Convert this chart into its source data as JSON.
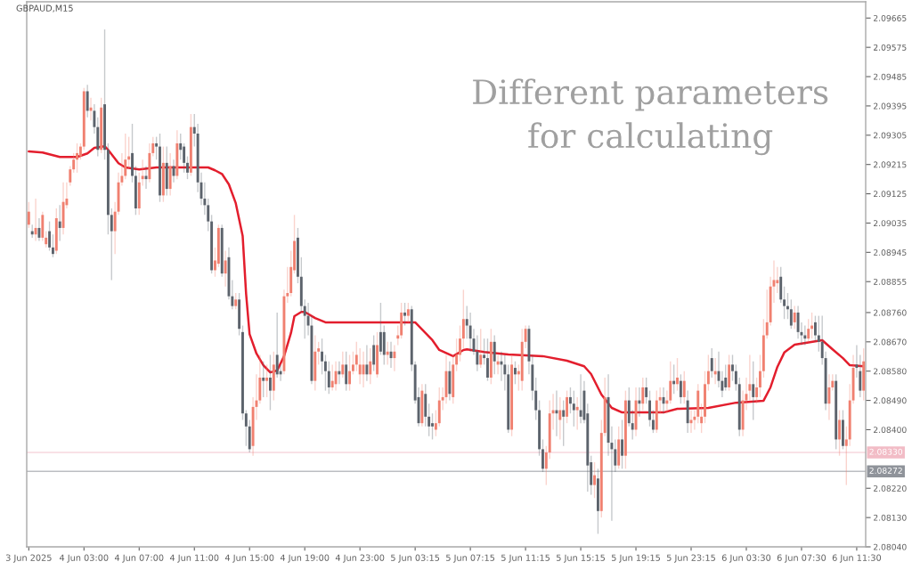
{
  "chart_data": {
    "type": "candlestick",
    "title": "GBPAUD,M15",
    "annotations": [
      "Different parameters\nfor calculating"
    ],
    "categories": [
      "3 Jun 2025",
      null,
      null,
      null,
      null,
      null,
      null,
      null,
      null,
      null,
      null,
      null,
      null,
      null,
      null,
      null,
      "4 Jun 03:00",
      null,
      null,
      null,
      null,
      null,
      null,
      null,
      null,
      null,
      null,
      null,
      null,
      null,
      null,
      null,
      "4 Jun 07:00",
      null,
      null,
      null,
      null,
      null,
      null,
      null,
      null,
      null,
      null,
      null,
      null,
      null,
      null,
      null,
      "4 Jun 11:00",
      null,
      null,
      null,
      null,
      null,
      null,
      null,
      null,
      null,
      null,
      null,
      null,
      null,
      null,
      null,
      "4 Jun 15:00",
      null,
      null,
      null,
      null,
      null,
      null,
      null,
      null,
      null,
      null,
      null,
      null,
      null,
      null,
      null,
      "4 Jun 19:00",
      null,
      null,
      null,
      null,
      null,
      null,
      null,
      null,
      null,
      null,
      null,
      null,
      null,
      null,
      null,
      "4 Jun 23:00",
      null,
      null,
      null,
      null,
      null,
      null,
      null,
      null,
      null,
      null,
      null,
      null,
      null,
      null,
      null,
      "5 Jun 03:15",
      null,
      null,
      null,
      null,
      null,
      null,
      null,
      null,
      null,
      null,
      null,
      null,
      null,
      null,
      null,
      "5 Jun 07:15",
      null,
      null,
      null,
      null,
      null,
      null,
      null,
      null,
      null,
      null,
      null,
      null,
      null,
      null,
      null,
      "5 Jun 11:15",
      null,
      null,
      null,
      null,
      null,
      null,
      null,
      null,
      null,
      null,
      null,
      null,
      null,
      null,
      null,
      "5 Jun 15:15",
      null,
      null,
      null,
      null,
      null,
      null,
      null,
      null,
      null,
      null,
      null,
      null,
      null,
      null,
      null,
      "5 Jun 19:15",
      null,
      null,
      null,
      null,
      null,
      null,
      null,
      null,
      null,
      null,
      null,
      null,
      null,
      null,
      null,
      "5 Jun 23:15",
      null,
      null,
      null,
      null,
      null,
      null,
      null,
      null,
      null,
      null,
      null,
      null,
      null,
      null,
      null,
      "6 Jun 03:30",
      null,
      null,
      null,
      null,
      null,
      null,
      null,
      null,
      null,
      null,
      null,
      null,
      null,
      null,
      null,
      "6 Jun 07:30",
      null,
      null,
      null,
      null,
      null,
      null,
      null,
      null,
      null,
      null,
      null,
      null,
      null,
      null,
      null,
      "6 Jun 11:30",
      null,
      null
    ],
    "ohlc": [
      [
        2.0903,
        2.091,
        2.0902,
        2.0907
      ],
      [
        2.0901,
        2.0903,
        2.0899,
        2.09
      ],
      [
        2.09,
        2.0911,
        2.0898,
        2.0902
      ],
      [
        2.0902,
        2.0905,
        2.0898,
        2.0899
      ],
      [
        2.0899,
        2.0907,
        2.0898,
        2.0906
      ],
      [
        2.0897,
        2.0901,
        2.0896,
        2.0899
      ],
      [
        2.0901,
        2.0904,
        2.0895,
        2.0896
      ],
      [
        2.0896,
        2.09,
        2.0893,
        2.0894
      ],
      [
        2.0895,
        2.0908,
        2.0894,
        2.0905
      ],
      [
        2.0904,
        2.0909,
        2.0898,
        2.0902
      ],
      [
        2.0902,
        2.0916,
        2.09,
        2.091
      ],
      [
        2.0909,
        2.0916,
        2.0908,
        2.0911
      ],
      [
        2.0916,
        2.0921,
        2.0915,
        2.092
      ],
      [
        2.092,
        2.0925,
        2.0919,
        2.0923
      ],
      [
        2.0923,
        2.0928,
        2.0919,
        2.0925
      ],
      [
        2.0924,
        2.0928,
        2.0923,
        2.0927
      ],
      [
        2.0927,
        2.0945,
        2.0926,
        2.0944
      ],
      [
        2.0944,
        2.0946,
        2.0936,
        2.0938
      ],
      [
        2.0938,
        2.0942,
        2.0935,
        2.0939
      ],
      [
        2.0938,
        2.094,
        2.0931,
        2.0933
      ],
      [
        2.0933,
        2.0936,
        2.0924,
        2.0926
      ],
      [
        2.0926,
        2.0942,
        2.0925,
        2.0939
      ],
      [
        2.094,
        2.0963,
        2.0923,
        2.0926
      ],
      [
        2.0926,
        2.0928,
        2.09,
        2.0906
      ],
      [
        2.0906,
        2.0908,
        2.0886,
        2.0901
      ],
      [
        2.0901,
        2.091,
        2.0894,
        2.0907
      ],
      [
        2.0907,
        2.0919,
        2.0906,
        2.0916
      ],
      [
        2.0916,
        2.0925,
        2.0915,
        2.0918
      ],
      [
        2.0918,
        2.0931,
        2.0917,
        2.0923
      ],
      [
        2.0923,
        2.093,
        2.092,
        2.0924
      ],
      [
        2.0925,
        2.0934,
        2.0916,
        2.0918
      ],
      [
        2.0918,
        2.0921,
        2.0906,
        2.0908
      ],
      [
        2.0908,
        2.0919,
        2.0906,
        2.0916
      ],
      [
        2.0917,
        2.0923,
        2.0915,
        2.0918
      ],
      [
        2.0918,
        2.0921,
        2.0914,
        2.0917
      ],
      [
        2.0917,
        2.0928,
        2.0916,
        2.0925
      ],
      [
        2.0925,
        2.093,
        2.0924,
        2.0928
      ],
      [
        2.0928,
        2.093,
        2.0923,
        2.0927
      ],
      [
        2.0927,
        2.0931,
        2.091,
        2.0912
      ],
      [
        2.0912,
        2.0927,
        2.091,
        2.0922
      ],
      [
        2.0922,
        2.0927,
        2.0912,
        2.0914
      ],
      [
        2.0914,
        2.0925,
        2.0912,
        2.0921
      ],
      [
        2.0921,
        2.0923,
        2.0916,
        2.0918
      ],
      [
        2.0918,
        2.0932,
        2.0917,
        2.0928
      ],
      [
        2.0928,
        2.0931,
        2.0923,
        2.0926
      ],
      [
        2.0927,
        2.0928,
        2.0919,
        2.0922
      ],
      [
        2.0922,
        2.0924,
        2.0917,
        2.0919
      ],
      [
        2.0919,
        2.0937,
        2.0918,
        2.0933
      ],
      [
        2.0933,
        2.0937,
        2.0927,
        2.0931
      ],
      [
        2.0931,
        2.0934,
        2.0913,
        2.0916
      ],
      [
        2.0916,
        2.0919,
        2.0909,
        2.0911
      ],
      [
        2.0911,
        2.0916,
        2.0906,
        2.0909
      ],
      [
        2.0909,
        2.0911,
        2.0901,
        2.0904
      ],
      [
        2.0904,
        2.0906,
        2.0888,
        2.0889
      ],
      [
        2.0889,
        2.0896,
        2.0887,
        2.0892
      ],
      [
        2.0891,
        2.0903,
        2.089,
        2.0902
      ],
      [
        2.0902,
        2.0903,
        2.0887,
        2.0888
      ],
      [
        2.0888,
        2.0895,
        2.0884,
        2.0892
      ],
      [
        2.0893,
        2.0896,
        2.088,
        2.0881
      ],
      [
        2.0881,
        2.0886,
        2.0877,
        2.0878
      ],
      [
        2.0878,
        2.0882,
        2.0877,
        2.088
      ],
      [
        2.088,
        2.0882,
        2.0869,
        2.0871
      ],
      [
        2.087,
        2.0872,
        2.0843,
        2.0845
      ],
      [
        2.0845,
        2.0846,
        2.0835,
        2.0841
      ],
      [
        2.0841,
        2.0843,
        2.0833,
        2.0834
      ],
      [
        2.0835,
        2.085,
        2.0832,
        2.0847
      ],
      [
        2.0847,
        2.0857,
        2.0843,
        2.0849
      ],
      [
        2.0849,
        2.0863,
        2.0848,
        2.0856
      ],
      [
        2.0856,
        2.0861,
        2.085,
        2.0855
      ],
      [
        2.0855,
        2.086,
        2.085,
        2.0856
      ],
      [
        2.0856,
        2.0863,
        2.0846,
        2.0852
      ],
      [
        2.0852,
        2.0864,
        2.0849,
        2.086
      ],
      [
        2.0863,
        2.0876,
        2.0856,
        2.0857
      ],
      [
        2.0858,
        2.086,
        2.0855,
        2.0857
      ],
      [
        2.0858,
        2.0883,
        2.0857,
        2.0881
      ],
      [
        2.0881,
        2.089,
        2.0879,
        2.0882
      ],
      [
        2.0882,
        2.0895,
        2.0881,
        2.089
      ],
      [
        2.0889,
        2.0906,
        2.0888,
        2.0898
      ],
      [
        2.0899,
        2.0902,
        2.0885,
        2.0887
      ],
      [
        2.0887,
        2.0893,
        2.0876,
        2.0878
      ],
      [
        2.0878,
        2.088,
        2.0868,
        2.0875
      ],
      [
        2.0875,
        2.0879,
        2.0869,
        2.0872
      ],
      [
        2.0872,
        2.0875,
        2.0854,
        2.0855
      ],
      [
        2.0855,
        2.0869,
        2.0852,
        2.0864
      ],
      [
        2.0864,
        2.0867,
        2.086,
        2.0865
      ],
      [
        2.0864,
        2.0868,
        2.0857,
        2.0861
      ],
      [
        2.0861,
        2.0863,
        2.0852,
        2.0858
      ],
      [
        2.0858,
        2.0861,
        2.0851,
        2.0853
      ],
      [
        2.0853,
        2.086,
        2.0852,
        2.0855
      ],
      [
        2.0854,
        2.0861,
        2.0852,
        2.0858
      ],
      [
        2.0858,
        2.0861,
        2.0854,
        2.0857
      ],
      [
        2.0857,
        2.0864,
        2.0856,
        2.086
      ],
      [
        2.086,
        2.0864,
        2.0852,
        2.0854
      ],
      [
        2.0854,
        2.0863,
        2.0852,
        2.0858
      ],
      [
        2.0858,
        2.0864,
        2.0857,
        2.086
      ],
      [
        2.086,
        2.0867,
        2.0858,
        2.0863
      ],
      [
        2.0857,
        2.0865,
        2.0854,
        2.086
      ],
      [
        2.0857,
        2.0864,
        2.0853,
        2.086
      ],
      [
        2.086,
        2.0866,
        2.0855,
        2.0857
      ],
      [
        2.0857,
        2.0865,
        2.0854,
        2.0861
      ],
      [
        2.0866,
        2.0869,
        2.0858,
        2.086
      ],
      [
        2.0857,
        2.087,
        2.0856,
        2.0866
      ],
      [
        2.087,
        2.0879,
        2.0863,
        2.0864
      ],
      [
        2.087,
        2.0872,
        2.086,
        2.0863
      ],
      [
        2.0863,
        2.0867,
        2.086,
        2.0864
      ],
      [
        2.0864,
        2.0867,
        2.0859,
        2.0862
      ],
      [
        2.0862,
        2.0866,
        2.0858,
        2.0864
      ],
      [
        2.0868,
        2.0872,
        2.0866,
        2.0869
      ],
      [
        2.0869,
        2.0879,
        2.0868,
        2.0876
      ],
      [
        2.0876,
        2.0879,
        2.0872,
        2.0875
      ],
      [
        2.0875,
        2.0879,
        2.0873,
        2.0877
      ],
      [
        2.0877,
        2.0878,
        2.0858,
        2.086
      ],
      [
        2.086,
        2.0861,
        2.0848,
        2.0849
      ],
      [
        2.085,
        2.0853,
        2.0841,
        2.0842
      ],
      [
        2.0842,
        2.0854,
        2.0841,
        2.0852
      ],
      [
        2.0851,
        2.0854,
        2.0841,
        2.0844
      ],
      [
        2.0844,
        2.0848,
        2.0838,
        2.0841
      ],
      [
        2.0842,
        2.0845,
        2.0837,
        2.0841
      ],
      [
        2.084,
        2.0846,
        2.0838,
        2.0842
      ],
      [
        2.0842,
        2.0853,
        2.0841,
        2.0849
      ],
      [
        2.0849,
        2.0853,
        2.0846,
        2.085
      ],
      [
        2.085,
        2.0863,
        2.0848,
        2.0858
      ],
      [
        2.0858,
        2.0861,
        2.0849,
        2.0851
      ],
      [
        2.085,
        2.0863,
        2.0848,
        2.086
      ],
      [
        2.086,
        2.0868,
        2.0858,
        2.0863
      ],
      [
        2.0863,
        2.0872,
        2.0861,
        2.0868
      ],
      [
        2.0868,
        2.0883,
        2.0865,
        2.0874
      ],
      [
        2.0874,
        2.0878,
        2.0868,
        2.0872
      ],
      [
        2.0872,
        2.0876,
        2.0864,
        2.0868
      ],
      [
        2.0868,
        2.0871,
        2.0863,
        2.0864
      ],
      [
        2.0864,
        2.0869,
        2.0858,
        2.086
      ],
      [
        2.086,
        2.0871,
        2.0859,
        2.0863
      ],
      [
        2.0863,
        2.0868,
        2.086,
        2.0862
      ],
      [
        2.0862,
        2.0868,
        2.0855,
        2.0856
      ],
      [
        2.0856,
        2.0871,
        2.0854,
        2.0867
      ],
      [
        2.0867,
        2.0869,
        2.0857,
        2.0861
      ],
      [
        2.086,
        2.0863,
        2.0857,
        2.0861
      ],
      [
        2.0861,
        2.0864,
        2.0855,
        2.086
      ],
      [
        2.086,
        2.0863,
        2.0852,
        2.0857
      ],
      [
        2.0857,
        2.086,
        2.0839,
        2.084
      ],
      [
        2.084,
        2.0863,
        2.0838,
        2.086
      ],
      [
        2.0859,
        2.0861,
        2.0854,
        2.0857
      ],
      [
        2.0857,
        2.086,
        2.0852,
        2.0858
      ],
      [
        2.0855,
        2.0871,
        2.0852,
        2.0867
      ],
      [
        2.0867,
        2.0872,
        2.0865,
        2.0871
      ],
      [
        2.0871,
        2.0872,
        2.0857,
        2.0861
      ],
      [
        2.086,
        2.0863,
        2.0849,
        2.0852
      ],
      [
        2.0852,
        2.0856,
        2.0843,
        2.0846
      ],
      [
        2.0846,
        2.0849,
        2.0832,
        2.0834
      ],
      [
        2.0834,
        2.0837,
        2.0827,
        2.0828
      ],
      [
        2.0828,
        2.0835,
        2.0823,
        2.0833
      ],
      [
        2.0833,
        2.0849,
        2.0831,
        2.0845
      ],
      [
        2.0845,
        2.0851,
        2.084,
        2.0846
      ],
      [
        2.0846,
        2.0852,
        2.0838,
        2.0845
      ],
      [
        2.0843,
        2.085,
        2.0837,
        2.0846
      ],
      [
        2.0846,
        2.0849,
        2.0835,
        2.0844
      ],
      [
        2.0844,
        2.0852,
        2.0842,
        2.085
      ],
      [
        2.085,
        2.0853,
        2.0845,
        2.0848
      ],
      [
        2.0848,
        2.0852,
        2.0841,
        2.0846
      ],
      [
        2.0846,
        2.085,
        2.084,
        2.0847
      ],
      [
        2.0846,
        2.0857,
        2.0842,
        2.0844
      ],
      [
        2.0852,
        2.0855,
        2.0842,
        2.0843
      ],
      [
        2.0845,
        2.0848,
        2.0821,
        2.0829
      ],
      [
        2.083,
        2.0832,
        2.082,
        2.0823
      ],
      [
        2.0823,
        2.083,
        2.0819,
        2.0826
      ],
      [
        2.0825,
        2.0828,
        2.0808,
        2.0815
      ],
      [
        2.0815,
        2.0843,
        2.0813,
        2.0839
      ],
      [
        2.0839,
        2.0856,
        2.0838,
        2.085
      ],
      [
        2.085,
        2.0857,
        2.0832,
        2.0836
      ],
      [
        2.0836,
        2.0841,
        2.0812,
        2.0834
      ],
      [
        2.0834,
        2.0837,
        2.0827,
        2.0829
      ],
      [
        2.0829,
        2.0841,
        2.0828,
        2.0837
      ],
      [
        2.0837,
        2.0843,
        2.0828,
        2.0832
      ],
      [
        2.0832,
        2.0852,
        2.0828,
        2.0849
      ],
      [
        2.0849,
        2.0853,
        2.0841,
        2.0842
      ],
      [
        2.0842,
        2.0846,
        2.0837,
        2.084
      ],
      [
        2.084,
        2.0853,
        2.0838,
        2.0849
      ],
      [
        2.0849,
        2.0853,
        2.0844,
        2.0848
      ],
      [
        2.0848,
        2.0856,
        2.0846,
        2.0853
      ],
      [
        2.0853,
        2.0856,
        2.0848,
        2.085
      ],
      [
        2.0849,
        2.0852,
        2.0841,
        2.0843
      ],
      [
        2.0843,
        2.0846,
        2.0839,
        2.084
      ],
      [
        2.084,
        2.0852,
        2.0839,
        2.0849
      ],
      [
        2.0849,
        2.0853,
        2.0845,
        2.085
      ],
      [
        2.085,
        2.0853,
        2.0845,
        2.0848
      ],
      [
        2.0848,
        2.0852,
        2.0845,
        2.0849
      ],
      [
        2.0849,
        2.0861,
        2.0848,
        2.0855
      ],
      [
        2.0855,
        2.086,
        2.0851,
        2.0854
      ],
      [
        2.0854,
        2.0862,
        2.0852,
        2.0856
      ],
      [
        2.0855,
        2.0857,
        2.0848,
        2.085
      ],
      [
        2.085,
        2.0858,
        2.0848,
        2.0855
      ],
      [
        2.0849,
        2.0852,
        2.0839,
        2.0842
      ],
      [
        2.0842,
        2.0846,
        2.0839,
        2.0843
      ],
      [
        2.0843,
        2.0846,
        2.084,
        2.0844
      ],
      [
        2.0844,
        2.0854,
        2.0842,
        2.0852
      ],
      [
        2.0842,
        2.0848,
        2.0839,
        2.0844
      ],
      [
        2.0844,
        2.0858,
        2.0842,
        2.0854
      ],
      [
        2.0854,
        2.0863,
        2.0852,
        2.0858
      ],
      [
        2.0862,
        2.0865,
        2.0856,
        2.0858
      ],
      [
        2.0857,
        2.0862,
        2.0854,
        2.0858
      ],
      [
        2.0858,
        2.0864,
        2.0853,
        2.0855
      ],
      [
        2.0855,
        2.0858,
        2.085,
        2.0852
      ],
      [
        2.0856,
        2.086,
        2.0852,
        2.0853
      ],
      [
        2.0853,
        2.0863,
        2.0852,
        2.086
      ],
      [
        2.086,
        2.0863,
        2.0855,
        2.0858
      ],
      [
        2.0858,
        2.086,
        2.0852,
        2.0854
      ],
      [
        2.0854,
        2.0856,
        2.0838,
        2.084
      ],
      [
        2.084,
        2.0852,
        2.0838,
        2.0849
      ],
      [
        2.0849,
        2.0856,
        2.0846,
        2.0851
      ],
      [
        2.0852,
        2.0863,
        2.0849,
        2.0854
      ],
      [
        2.0854,
        2.0861,
        2.0843,
        2.085
      ],
      [
        2.085,
        2.0856,
        2.0848,
        2.0853
      ],
      [
        2.0853,
        2.0863,
        2.085,
        2.0858
      ],
      [
        2.0858,
        2.0874,
        2.0856,
        2.0869
      ],
      [
        2.0869,
        2.0883,
        2.0868,
        2.0873
      ],
      [
        2.0873,
        2.0887,
        2.0872,
        2.0884
      ],
      [
        2.0884,
        2.0892,
        2.0879,
        2.0886
      ],
      [
        2.0885,
        2.089,
        2.0882,
        2.0886
      ],
      [
        2.0887,
        2.089,
        2.0879,
        2.088
      ],
      [
        2.088,
        2.0884,
        2.0874,
        2.0878
      ],
      [
        2.0878,
        2.0882,
        2.0874,
        2.0877
      ],
      [
        2.0877,
        2.088,
        2.0871,
        2.0872
      ],
      [
        2.0873,
        2.0878,
        2.0871,
        2.0876
      ],
      [
        2.0876,
        2.0878,
        2.0868,
        2.087
      ],
      [
        2.087,
        2.0873,
        2.0866,
        2.0869
      ],
      [
        2.0869,
        2.0872,
        2.0866,
        2.0868
      ],
      [
        2.0868,
        2.0874,
        2.0867,
        2.0871
      ],
      [
        2.0871,
        2.0876,
        2.0868,
        2.0872
      ],
      [
        2.0873,
        2.0875,
        2.0867,
        2.0869
      ],
      [
        2.0869,
        2.0875,
        2.0864,
        2.0867
      ],
      [
        2.0867,
        2.0875,
        2.086,
        2.0862
      ],
      [
        2.0862,
        2.0864,
        2.0846,
        2.0848
      ],
      [
        2.0848,
        2.0857,
        2.0843,
        2.0853
      ],
      [
        2.0853,
        2.0857,
        2.0852,
        2.0855
      ],
      [
        2.0855,
        2.0857,
        2.0834,
        2.0837
      ],
      [
        2.0837,
        2.0846,
        2.0832,
        2.0843
      ],
      [
        2.0843,
        2.0846,
        2.0834,
        2.0835
      ],
      [
        2.0835,
        2.0841,
        2.0823,
        2.0837
      ],
      [
        2.0837,
        2.0854,
        2.0835,
        2.0849
      ],
      [
        2.0849,
        2.0863,
        2.0848,
        2.0859
      ],
      [
        2.086,
        2.0866,
        2.0856,
        2.0859
      ],
      [
        2.0858,
        2.0863,
        2.085,
        2.0852
      ],
      [
        2.0852,
        2.0865,
        2.0849,
        2.0861
      ]
    ],
    "colors": [
      "#f08070",
      "#5c636c",
      "#f08070",
      "#5c636c",
      "#f08070",
      "#f08070",
      "#5c636c",
      "#5c636c",
      "#f08070",
      "#5c636c",
      "#f08070",
      "#f08070",
      "#f08070",
      "#f08070",
      "#f08070",
      "#f08070",
      "#f08070",
      "#5c636c",
      "#f08070",
      "#5c636c",
      "#5c636c",
      "#f08070",
      "#5c636c",
      "#5c636c",
      "#5c636c",
      "#f08070",
      "#f08070",
      "#f08070",
      "#f08070",
      "#f08070",
      "#5c636c",
      "#5c636c",
      "#f08070",
      "#f08070",
      "#5c636c",
      "#f08070",
      "#f08070",
      "#5c636c",
      "#5c636c",
      "#f08070",
      "#5c636c",
      "#f08070",
      "#5c636c",
      "#f08070",
      "#5c636c",
      "#5c636c",
      "#5c636c",
      "#f08070",
      "#5c636c",
      "#5c636c",
      "#5c636c",
      "#5c636c",
      "#5c636c",
      "#5c636c",
      "#f08070",
      "#f08070",
      "#5c636c",
      "#f08070",
      "#5c636c",
      "#5c636c",
      "#f08070",
      "#5c636c",
      "#5c636c",
      "#5c636c",
      "#5c636c",
      "#f08070",
      "#f08070",
      "#f08070",
      "#5c636c",
      "#f08070",
      "#5c636c",
      "#f08070",
      "#5c636c",
      "#5c636c",
      "#f08070",
      "#f08070",
      "#f08070",
      "#f08070",
      "#5c636c",
      "#5c636c",
      "#5c636c",
      "#5c636c",
      "#5c636c",
      "#f08070",
      "#f08070",
      "#5c636c",
      "#5c636c",
      "#5c636c",
      "#f08070",
      "#f08070",
      "#5c636c",
      "#f08070",
      "#5c636c",
      "#f08070",
      "#f08070",
      "#f08070",
      "#f08070",
      "#f08070",
      "#5c636c",
      "#f08070",
      "#5c636c",
      "#f08070",
      "#5c636c",
      "#5c636c",
      "#f08070",
      "#5c636c",
      "#f08070",
      "#f08070",
      "#f08070",
      "#5c636c",
      "#f08070",
      "#5c636c",
      "#5c636c",
      "#5c636c",
      "#f08070",
      "#5c636c",
      "#5c636c",
      "#5c636c",
      "#f08070",
      "#f08070",
      "#f08070",
      "#f08070",
      "#5c636c",
      "#f08070",
      "#f08070",
      "#f08070",
      "#f08070",
      "#5c636c",
      "#5c636c",
      "#5c636c",
      "#5c636c",
      "#f08070",
      "#5c636c",
      "#5c636c",
      "#f08070",
      "#5c636c",
      "#f08070",
      "#5c636c",
      "#5c636c",
      "#5c636c",
      "#f08070",
      "#5c636c",
      "#f08070",
      "#f08070",
      "#f08070",
      "#5c636c",
      "#5c636c",
      "#5c636c",
      "#5c636c",
      "#5c636c",
      "#f08070",
      "#f08070",
      "#f08070",
      "#5c636c",
      "#f08070",
      "#5c636c",
      "#f08070",
      "#5c636c",
      "#5c636c",
      "#f08070",
      "#5c636c",
      "#5c636c",
      "#5c636c",
      "#5c636c",
      "#f08070",
      "#5c636c",
      "#f08070",
      "#f08070",
      "#5c636c",
      "#5c636c",
      "#5c636c",
      "#f08070",
      "#5c636c",
      "#f08070",
      "#5c636c",
      "#5c636c",
      "#f08070",
      "#5c636c",
      "#f08070",
      "#5c636c",
      "#5c636c",
      "#5c636c",
      "#f08070",
      "#f08070",
      "#5c636c",
      "#f08070",
      "#f08070",
      "#5c636c",
      "#f08070",
      "#5c636c",
      "#f08070",
      "#5c636c",
      "#f08070",
      "#f08070",
      "#f08070",
      "#f08070",
      "#f08070",
      "#f08070",
      "#5c636c",
      "#f08070",
      "#5c636c",
      "#5c636c",
      "#5c636c",
      "#f08070",
      "#5c636c",
      "#5c636c",
      "#5c636c",
      "#f08070",
      "#f08070",
      "#f08070",
      "#5c636c",
      "#f08070",
      "#f08070",
      "#f08070",
      "#f08070",
      "#f08070",
      "#f08070",
      "#f08070",
      "#5c636c",
      "#5c636c",
      "#5c636c",
      "#5c636c",
      "#f08070",
      "#5c636c",
      "#5c636c",
      "#5c636c",
      "#f08070",
      "#f08070",
      "#5c636c",
      "#5c636c",
      "#5c636c",
      "#5c636c",
      "#f08070",
      "#f08070",
      "#5c636c",
      "#f08070",
      "#5c636c",
      "#f08070",
      "#f08070",
      "#f08070",
      "#5c636c",
      "#5c636c",
      "#f08070"
    ],
    "series": [
      {
        "type": "line",
        "color": "#e31e2d",
        "values": [
          2.09255,
          null,
          null,
          null,
          2.09252,
          null,
          null,
          null,
          null,
          2.09238,
          null,
          null,
          null,
          null,
          2.09238,
          null,
          null,
          2.09249,
          null,
          2.09266,
          null,
          null,
          2.09271,
          2.0926,
          null,
          null,
          2.09219,
          null,
          2.09206,
          null,
          null,
          null,
          2.092,
          null,
          null,
          null,
          null,
          2.09206,
          null,
          null,
          null,
          null,
          null,
          null,
          null,
          null,
          null,
          null,
          null,
          2.09206,
          null,
          null,
          2.09206,
          null,
          2.09197,
          null,
          2.09186,
          null,
          2.09154,
          null,
          2.09096,
          null,
          2.08995,
          2.08817,
          2.08694,
          null,
          2.08634,
          null,
          2.08598,
          null,
          2.08576,
          null,
          2.08582,
          null,
          2.08626,
          null,
          2.08697,
          2.08749,
          null,
          2.08762,
          2.08762,
          null,
          null,
          2.08743,
          null,
          null,
          2.0873,
          null,
          null,
          null,
          null,
          null,
          null,
          null,
          null,
          null,
          null,
          null,
          null,
          null,
          null,
          null,
          null,
          null,
          null,
          null,
          null,
          null,
          null,
          null,
          null,
          null,
          2.0873,
          null,
          2.08708,
          null,
          null,
          2.08675,
          null,
          2.08645,
          null,
          null,
          null,
          2.08626,
          null,
          null,
          2.08645,
          2.08647,
          null,
          null,
          null,
          null,
          2.08639,
          null,
          null,
          null,
          null,
          null,
          null,
          2.08631,
          null,
          null,
          null,
          null,
          null,
          null,
          null,
          null,
          null,
          2.08626,
          null,
          null,
          null,
          null,
          null,
          null,
          2.08612,
          null,
          null,
          null,
          null,
          2.08595,
          null,
          2.08571,
          null,
          null,
          2.08508,
          null,
          null,
          2.08467,
          null,
          null,
          2.08453,
          null,
          null,
          null,
          null,
          null,
          null,
          null,
          null,
          null,
          null,
          null,
          2.08453,
          null,
          null,
          null,
          2.08464,
          null,
          null,
          null,
          null,
          null,
          null,
          null,
          null,
          2.08467,
          null,
          null,
          null,
          null,
          null,
          null,
          null,
          2.08483,
          null,
          null,
          null,
          null,
          null,
          null,
          null,
          2.08489,
          null,
          2.0853,
          null,
          2.08593,
          null,
          2.08637,
          null,
          null,
          2.08661,
          null,
          null,
          null,
          null,
          null,
          null,
          null,
          2.08675,
          null,
          null,
          2.08647,
          null,
          null,
          2.0862,
          null,
          2.08598,
          null,
          null,
          null,
          2.08595
        ]
      }
    ],
    "ylim": [
      2.0804,
      2.09715
    ],
    "yticks": [
      {
        "value": 2.09665,
        "label": "2.09665"
      },
      {
        "value": 2.09575,
        "label": "2.09575"
      },
      {
        "value": 2.09485,
        "label": "2.09485"
      },
      {
        "value": 2.09395,
        "label": "2.09395"
      },
      {
        "value": 2.09305,
        "label": "2.09305"
      },
      {
        "value": 2.09215,
        "label": "2.09215"
      },
      {
        "value": 2.09125,
        "label": "2.09125"
      },
      {
        "value": 2.09035,
        "label": "2.09035"
      },
      {
        "value": 2.08945,
        "label": "2.08945"
      },
      {
        "value": 2.08855,
        "label": "2.08855"
      },
      {
        "value": 2.0876,
        "label": "2.08760"
      },
      {
        "value": 2.0867,
        "label": "2.08670"
      },
      {
        "value": 2.0858,
        "label": "2.08580"
      },
      {
        "value": 2.0849,
        "label": "2.08490"
      },
      {
        "value": 2.084,
        "label": "2.08400"
      },
      {
        "value": 2.0822,
        "label": "2.08220"
      },
      {
        "value": 2.0813,
        "label": "2.08130"
      },
      {
        "value": 2.0804,
        "label": "2.08040"
      }
    ],
    "ref_lines": [
      {
        "axis": "y",
        "value": 2.0833,
        "label": "2.08330",
        "color": "#f2bcc6"
      },
      {
        "axis": "y",
        "value": 2.08272,
        "label": "2.08272",
        "color": "#8f939a"
      }
    ]
  }
}
